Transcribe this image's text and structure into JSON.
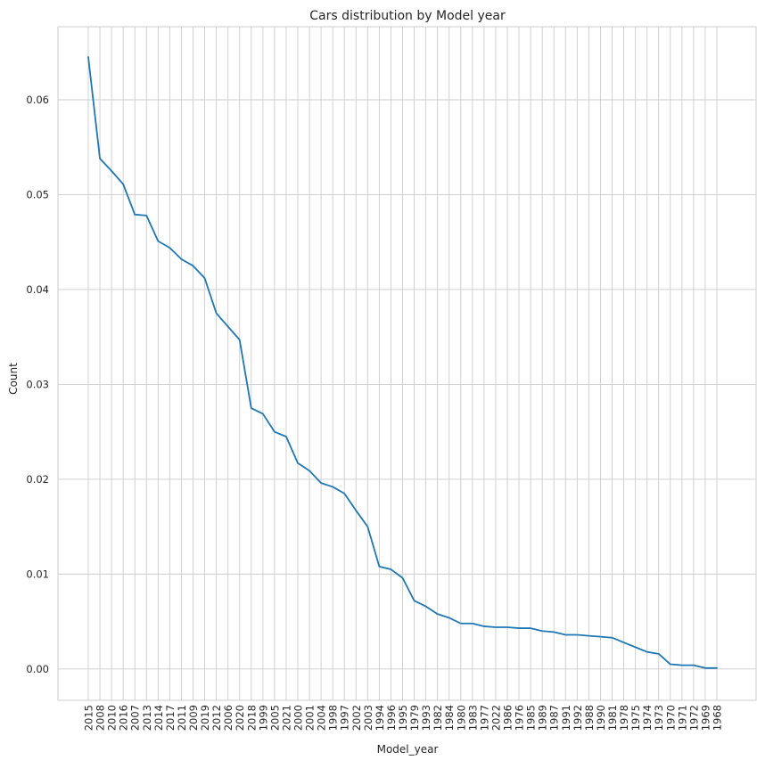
{
  "chart_data": {
    "type": "line",
    "title": "Cars distribution by Model year",
    "xlabel": "Model_year",
    "ylabel": "Count",
    "categories": [
      "2015",
      "2008",
      "2010",
      "2016",
      "2007",
      "2013",
      "2014",
      "2017",
      "2011",
      "2009",
      "2019",
      "2012",
      "2006",
      "2020",
      "2018",
      "1999",
      "2005",
      "2021",
      "2000",
      "2001",
      "2004",
      "1998",
      "1997",
      "2002",
      "2003",
      "1994",
      "1996",
      "1995",
      "1979",
      "1993",
      "1982",
      "1984",
      "1980",
      "1983",
      "1977",
      "2022",
      "1986",
      "1976",
      "1985",
      "1989",
      "1987",
      "1991",
      "1992",
      "1988",
      "1990",
      "1981",
      "1978",
      "1975",
      "1974",
      "1973",
      "1970",
      "1971",
      "1972",
      "1969",
      "1968"
    ],
    "series": [
      {
        "color": "#1f77b4",
        "values": [
          0.0645,
          0.0538,
          0.0525,
          0.0511,
          0.0479,
          0.0478,
          0.0451,
          0.0444,
          0.0432,
          0.0425,
          0.0412,
          0.0375,
          0.0361,
          0.0347,
          0.0275,
          0.0269,
          0.025,
          0.0245,
          0.0217,
          0.0209,
          0.0196,
          0.0192,
          0.0185,
          0.0167,
          0.015,
          0.0108,
          0.0105,
          0.0096,
          0.0072,
          0.0066,
          0.0058,
          0.0054,
          0.0048,
          0.0048,
          0.0045,
          0.0044,
          0.0044,
          0.0043,
          0.0043,
          0.004,
          0.0039,
          0.0036,
          0.0036,
          0.0035,
          0.0034,
          0.0033,
          0.0028,
          0.0023,
          0.0018,
          0.0016,
          0.0005,
          0.0004,
          0.0004,
          0.0001,
          0.0001
        ]
      }
    ],
    "yticks": [
      "0.00",
      "0.01",
      "0.02",
      "0.03",
      "0.04",
      "0.05",
      "0.06"
    ],
    "ylim": [
      -0.0033,
      0.0677
    ],
    "grid": true,
    "legend": false
  }
}
